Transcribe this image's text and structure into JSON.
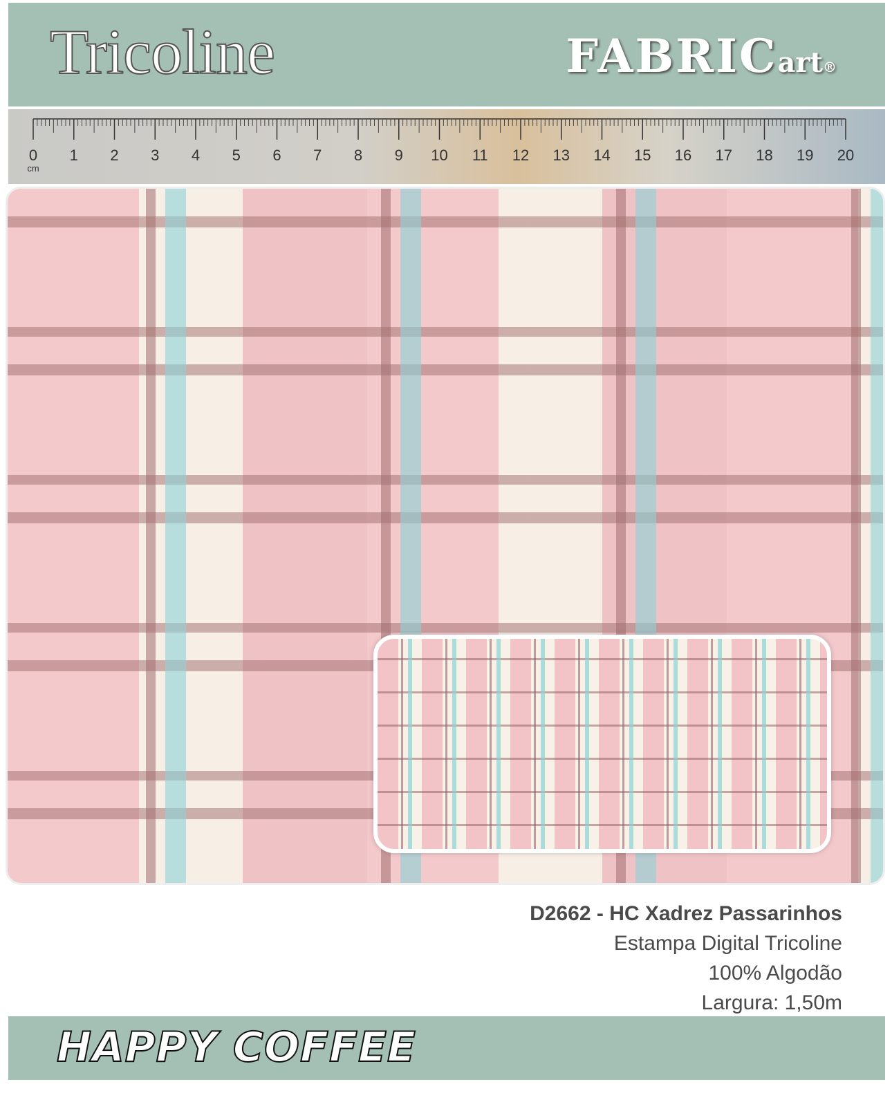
{
  "header": {
    "title": "Tricoline",
    "logo_main": "FABRIC",
    "logo_sub": "art",
    "logo_mark": "®"
  },
  "ruler": {
    "labels": [
      0,
      1,
      2,
      3,
      4,
      5,
      6,
      7,
      8,
      9,
      10,
      11,
      12,
      13,
      14,
      15,
      16,
      17,
      18,
      19,
      20
    ],
    "unit": "cm"
  },
  "product": {
    "name": "D2662 - HC Xadrez Passarinhos",
    "lines": [
      "Estampa Digital Tricoline",
      "100% Algodão",
      "Largura: 1,50m"
    ]
  },
  "footer": {
    "collection": "HAPPY COFFEE"
  }
}
